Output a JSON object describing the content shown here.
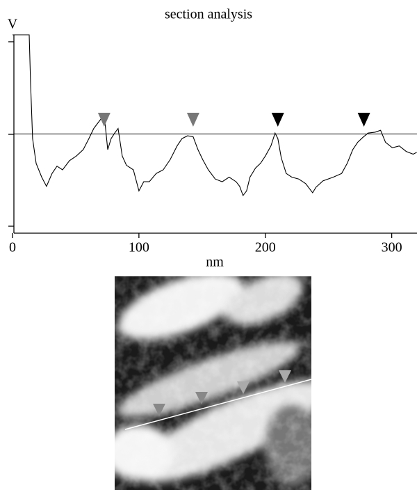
{
  "chart_data": {
    "type": "line",
    "title": "section analysis",
    "y_label": "V",
    "x_label": "nm",
    "xlim": [
      0,
      320
    ],
    "ylim": [
      -1.08,
      1.08
    ],
    "xticks": [
      0,
      100,
      200,
      300
    ],
    "color": "#000000",
    "reference_line": 0,
    "x": [
      0,
      13.2,
      14.3,
      15.9,
      18.7,
      23.1,
      26.9,
      31.3,
      35.2,
      39.6,
      45.1,
      50.5,
      56.0,
      60.4,
      64.3,
      68.7,
      72.5,
      75.3,
      78.0,
      80.8,
      83.5,
      86.8,
      90.1,
      95.6,
      100.0,
      103.8,
      108.2,
      113.7,
      119.2,
      124.7,
      130.2,
      134.1,
      138.5,
      142.9,
      146.7,
      150.5,
      154.9,
      160.4,
      165.9,
      171.4,
      176.9,
      179.7,
      182.4,
      185.2,
      187.9,
      192.3,
      196.2,
      200.0,
      204.4,
      207.7,
      209.9,
      212.6,
      216.5,
      220.9,
      226.4,
      231.9,
      237.4,
      240.1,
      245.6,
      253.8,
      260.4,
      264.8,
      269.2,
      273.1,
      276.9,
      281.3,
      286.8,
      291.2,
      295.1,
      300.5,
      306.0,
      311.5,
      317.0,
      319.8
    ],
    "values": [
      1.08,
      1.08,
      0.55,
      -0.05,
      -0.32,
      -0.47,
      -0.57,
      -0.43,
      -0.35,
      -0.39,
      -0.29,
      -0.24,
      -0.17,
      -0.05,
      0.06,
      0.14,
      0.21,
      -0.17,
      -0.05,
      0.01,
      0.06,
      -0.24,
      -0.34,
      -0.39,
      -0.62,
      -0.52,
      -0.52,
      -0.43,
      -0.39,
      -0.28,
      -0.13,
      -0.05,
      -0.02,
      -0.03,
      -0.17,
      -0.28,
      -0.39,
      -0.49,
      -0.52,
      -0.47,
      -0.52,
      -0.57,
      -0.67,
      -0.62,
      -0.47,
      -0.37,
      -0.32,
      -0.24,
      -0.13,
      0.01,
      -0.05,
      -0.26,
      -0.43,
      -0.47,
      -0.49,
      -0.54,
      -0.64,
      -0.58,
      -0.51,
      -0.47,
      -0.43,
      -0.32,
      -0.17,
      -0.09,
      -0.04,
      0.01,
      0.02,
      0.04,
      -0.09,
      -0.15,
      -0.13,
      -0.19,
      -0.22,
      -0.2
    ],
    "markers": [
      {
        "x": 72.5,
        "color": "#777777"
      },
      {
        "x": 142.9,
        "color": "#777777"
      },
      {
        "x": 209.9,
        "color": "#000000"
      },
      {
        "x": 278.0,
        "color": "#000000"
      }
    ]
  }
}
